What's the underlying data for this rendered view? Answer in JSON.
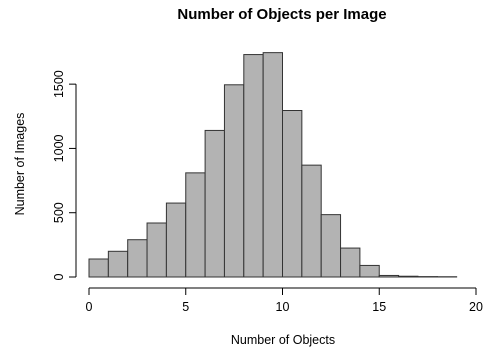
{
  "chart_data": {
    "type": "bar",
    "title": "Number of Objects per Image",
    "xlabel": "Number of Objects",
    "ylabel": "Number of Images",
    "bin_edges": [
      0,
      1,
      2,
      3,
      4,
      5,
      6,
      7,
      8,
      9,
      10,
      11,
      12,
      13,
      14,
      15,
      16,
      17,
      18,
      19
    ],
    "values": [
      140,
      200,
      290,
      420,
      575,
      810,
      1140,
      1495,
      1730,
      1745,
      1295,
      870,
      485,
      225,
      90,
      12,
      6,
      3,
      2
    ],
    "xlim": [
      0,
      20
    ],
    "ylim": [
      0,
      1750
    ],
    "x_ticks": [
      0,
      5,
      10,
      15,
      20
    ],
    "y_ticks": [
      0,
      500,
      1000,
      1500
    ],
    "bar_color": "#b3b3b3",
    "bar_edge_color": "#333333",
    "grid": false,
    "legend": "none"
  }
}
